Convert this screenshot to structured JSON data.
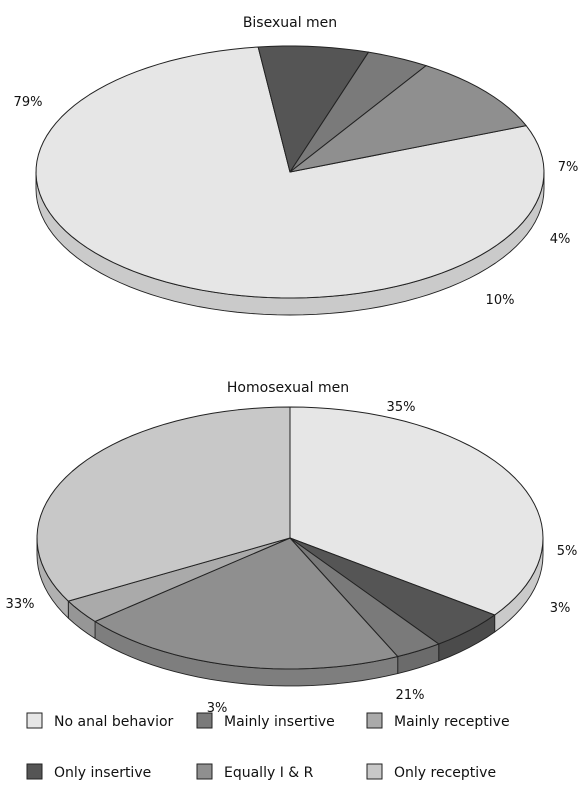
{
  "chart_data": [
    {
      "type": "pie",
      "title": "Bisexual men",
      "slices": [
        {
          "category": "No anal behavior",
          "value": 79,
          "label": "79%"
        },
        {
          "category": "Only insertive",
          "value": 7,
          "label": "7%"
        },
        {
          "category": "Mainly insertive",
          "value": 4,
          "label": "4%"
        },
        {
          "category": "Equally I & R",
          "value": 10,
          "label": "10%"
        }
      ]
    },
    {
      "type": "pie",
      "title": "Homosexual men",
      "slices": [
        {
          "category": "No anal behavior",
          "value": 35,
          "label": "35%"
        },
        {
          "category": "Only insertive",
          "value": 5,
          "label": "5%"
        },
        {
          "category": "Mainly insertive",
          "value": 3,
          "label": "3%"
        },
        {
          "category": "Equally I & R",
          "value": 21,
          "label": "21%"
        },
        {
          "category": "Mainly receptive",
          "value": 3,
          "label": "3%"
        },
        {
          "category": "Only receptive",
          "value": 33,
          "label": "33%"
        }
      ]
    }
  ],
  "legend": [
    {
      "category": "No anal behavior",
      "color": "#e6e6e6"
    },
    {
      "category": "Mainly insertive",
      "color": "#7a7a7a"
    },
    {
      "category": "Mainly receptive",
      "color": "#aaaaaa"
    },
    {
      "category": "Only insertive",
      "color": "#555555"
    },
    {
      "category": "Equally I & R",
      "color": "#8f8f8f"
    },
    {
      "category": "Only receptive",
      "color": "#c8c8c8"
    }
  ],
  "colors": {
    "No anal behavior": "#e6e6e6",
    "Only insertive": "#555555",
    "Mainly insertive": "#7a7a7a",
    "Equally I & R": "#8f8f8f",
    "Mainly receptive": "#aaaaaa",
    "Only receptive": "#c8c8c8"
  }
}
